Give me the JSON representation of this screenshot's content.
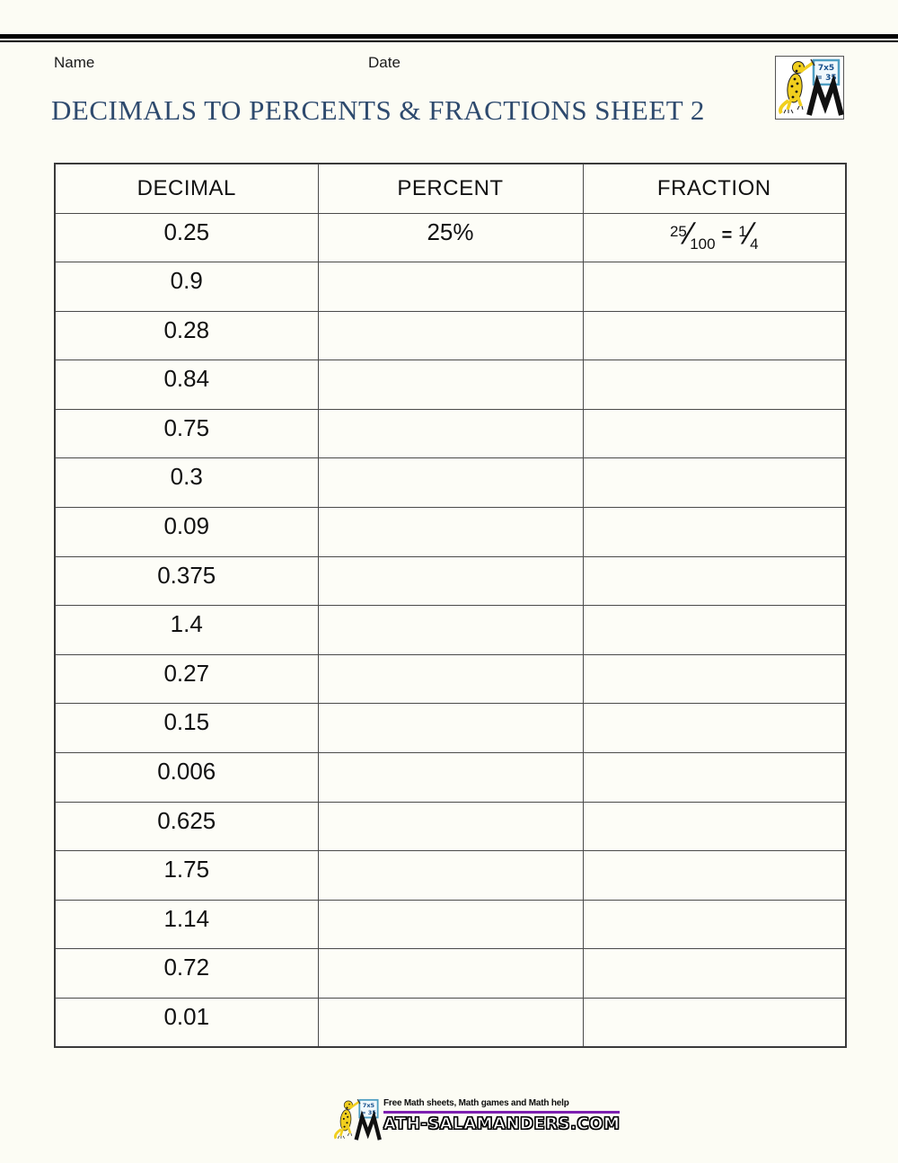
{
  "header": {
    "name_label": "Name",
    "date_label": "Date",
    "title": "DECIMALS TO PERCENTS & FRACTIONS SHEET 2"
  },
  "logo": {
    "board_line1": "7x5",
    "board_line2": "= 35"
  },
  "table": {
    "headers": [
      "DECIMAL",
      "PERCENT",
      "FRACTION"
    ],
    "example_row": {
      "decimal": "0.25",
      "percent": "25%",
      "fraction": {
        "num1": "25",
        "slash": "⁄",
        "den1": "100",
        "eq": "=",
        "num2": "1",
        "den2": "4"
      }
    },
    "rows": [
      "0.9",
      "0.28",
      "0.84",
      "0.75",
      "0.3",
      "0.09",
      "0.375",
      "1.4",
      "0.27",
      "0.15",
      "0.006",
      "0.625",
      "1.75",
      "1.14",
      "0.72",
      "0.01"
    ]
  },
  "footer": {
    "tagline": "Free Math sheets, Math games and Math help",
    "site_text": "ATH-SALAMANDERS.COM"
  },
  "colors": {
    "page_background": "#fcfcf4",
    "title_text": "#2e4a6e",
    "footer_divider": "#7d20b0",
    "salamander_yellow": "#f1cf1e",
    "logo_board_blue": "#4e9ec2"
  }
}
